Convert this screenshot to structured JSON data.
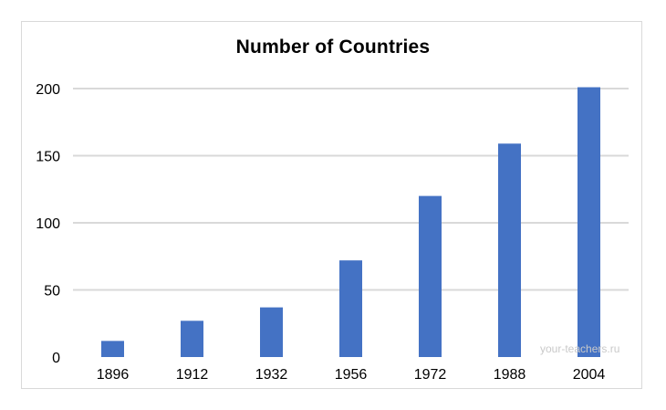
{
  "chart_data": {
    "type": "bar",
    "title": "Number of Countries",
    "categories": [
      "1896",
      "1912",
      "1932",
      "1956",
      "1972",
      "1988",
      "2004"
    ],
    "values": [
      12,
      27,
      37,
      72,
      120,
      159,
      201
    ],
    "xlabel": "",
    "ylabel": "",
    "ylim": [
      0,
      200
    ],
    "yticks": [
      0,
      50,
      100,
      150,
      200
    ],
    "grid": true,
    "legend": "none",
    "bar_color": "#4472c4",
    "grid_color": "#d9d9d9"
  },
  "watermark": "your-teachers.ru"
}
